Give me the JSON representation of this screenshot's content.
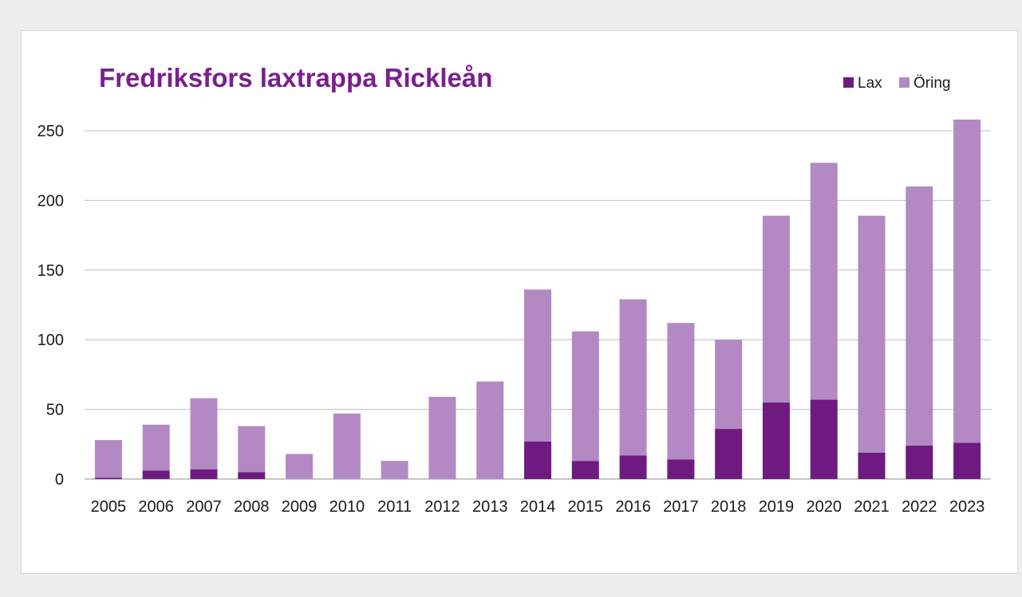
{
  "colors": {
    "lax": "#6e1a80",
    "oring": "#b389c3",
    "title": "#7a1f8e",
    "grid": "#bdbdbd",
    "axis": "#8c8c8c"
  },
  "chart_data": {
    "type": "bar",
    "stacked": true,
    "title": "Fredriksfors laxtrappa Rickleån",
    "xlabel": "",
    "ylabel": "",
    "ylim": [
      0,
      260
    ],
    "yticks": [
      0,
      50,
      100,
      150,
      200,
      250
    ],
    "grid": true,
    "legend_position": "top-right",
    "categories": [
      "2005",
      "2006",
      "2007",
      "2008",
      "2009",
      "2010",
      "2011",
      "2012",
      "2013",
      "2014",
      "2015",
      "2016",
      "2017",
      "2018",
      "2019",
      "2020",
      "2021",
      "2022",
      "2023"
    ],
    "series": [
      {
        "name": "Lax",
        "color_key": "lax",
        "values": [
          1,
          6,
          7,
          5,
          0,
          0,
          0,
          0,
          0,
          27,
          13,
          17,
          14,
          36,
          55,
          57,
          19,
          24,
          26
        ]
      },
      {
        "name": "Öring",
        "color_key": "oring",
        "values": [
          27,
          33,
          51,
          33,
          18,
          47,
          13,
          59,
          70,
          109,
          93,
          112,
          98,
          64,
          134,
          170,
          170,
          186,
          232
        ]
      }
    ]
  }
}
